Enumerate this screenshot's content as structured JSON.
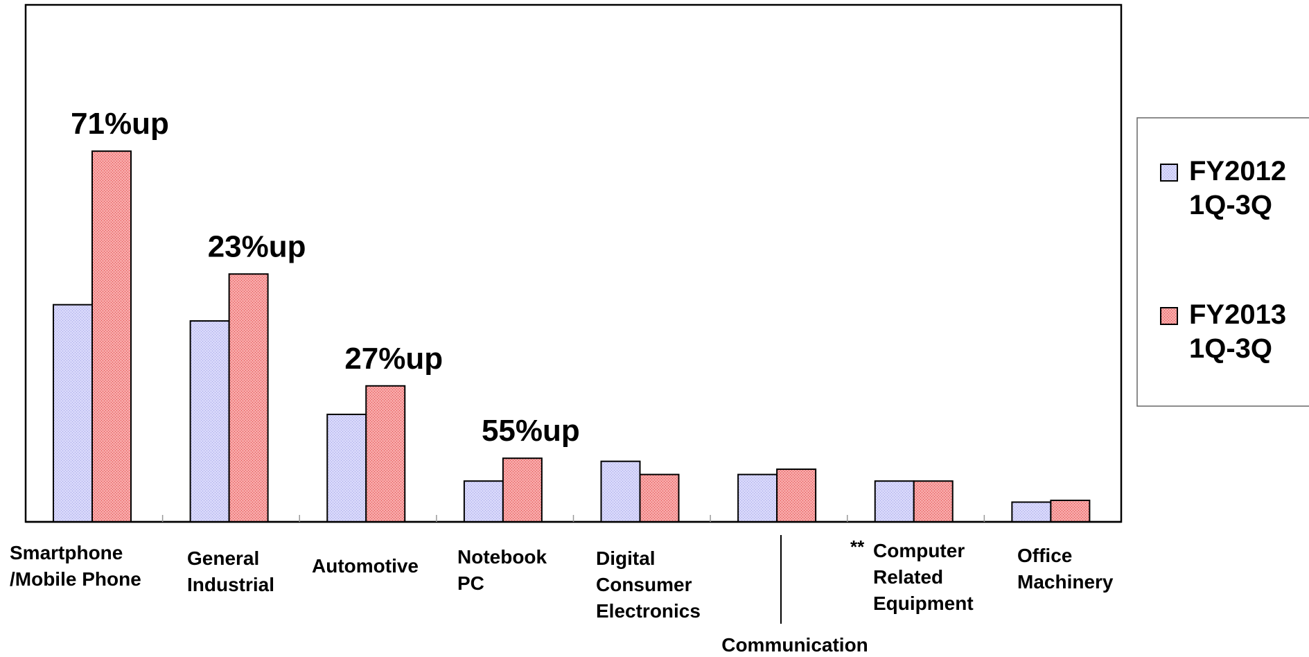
{
  "chart_data": {
    "type": "bar",
    "title": "",
    "xlabel": "",
    "ylabel": "",
    "grid": false,
    "legend_position": "right",
    "categories": [
      [
        "Smartphone",
        "/Mobile Phone"
      ],
      [
        "General",
        "Industrial"
      ],
      [
        "Automotive"
      ],
      [
        "Notebook",
        "PC"
      ],
      [
        "Digital",
        "Consumer",
        "Electronics"
      ],
      [
        "Communication"
      ],
      [
        "Computer",
        "Related",
        "Equipment"
      ],
      [
        "Office",
        "Machinery"
      ]
    ],
    "footnote_marker": "**",
    "ylim": [
      0,
      100
    ],
    "series": [
      {
        "name": [
          "FY2012",
          "1Q-3Q"
        ],
        "color": "#c9c9f5",
        "values": [
          49.5,
          45.8,
          24.5,
          9.3,
          13.8,
          10.8,
          9.3,
          4.5
        ]
      },
      {
        "name": [
          "FY2013",
          "1Q-3Q"
        ],
        "color": "#f48a8a",
        "values": [
          84.5,
          56.5,
          31.0,
          14.5,
          10.8,
          12.0,
          9.3,
          4.9
        ]
      }
    ],
    "annotations": [
      "71%up",
      "23%up",
      "27%up",
      "55%up",
      null,
      null,
      null,
      null
    ]
  }
}
